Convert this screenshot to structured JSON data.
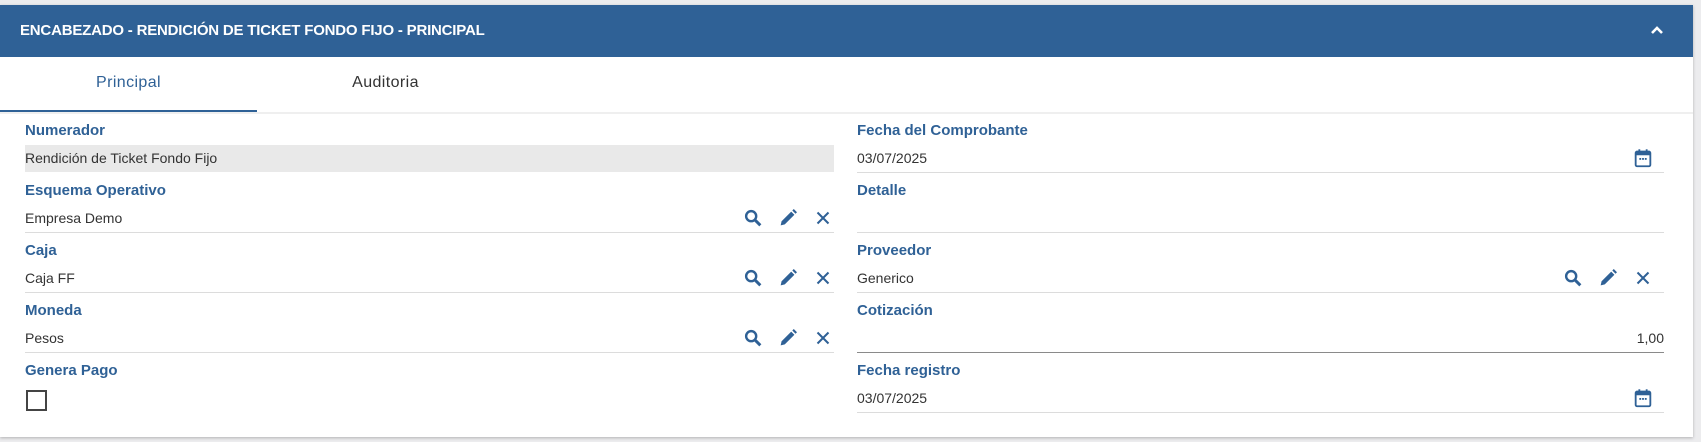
{
  "header": {
    "title": "ENCABEZADO - RENDICIÓN DE TICKET FONDO FIJO - PRINCIPAL",
    "collapse_icon": "chevron-up-icon"
  },
  "tabs": [
    {
      "label": "Principal",
      "active": true
    },
    {
      "label": "Auditoria",
      "active": false
    }
  ],
  "left": {
    "numerador": {
      "label": "Numerador",
      "value": "Rendición de Ticket Fondo Fijo"
    },
    "esquema": {
      "label": "Esquema Operativo",
      "value": "Empresa Demo"
    },
    "caja": {
      "label": "Caja",
      "value": "Caja FF"
    },
    "moneda": {
      "label": "Moneda",
      "value": "Pesos"
    },
    "genera_pago": {
      "label": "Genera Pago",
      "checked": false
    }
  },
  "right": {
    "fecha_comprobante": {
      "label": "Fecha del Comprobante",
      "value": "03/07/2025"
    },
    "detalle": {
      "label": "Detalle",
      "value": ""
    },
    "proveedor": {
      "label": "Proveedor",
      "value": "Generico"
    },
    "cotizacion": {
      "label": "Cotización",
      "value": "1,00"
    },
    "fecha_registro": {
      "label": "Fecha registro",
      "value": "03/07/2025"
    }
  },
  "colors": {
    "accent": "#2f6196"
  }
}
